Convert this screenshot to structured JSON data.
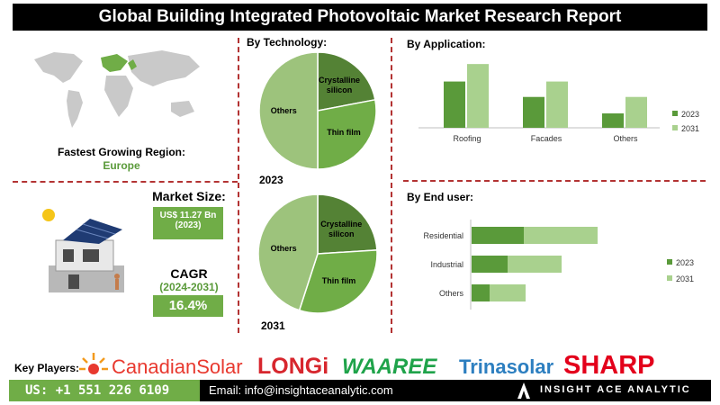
{
  "title": "Global Building Integrated Photovoltaic Market Research Report",
  "region": {
    "label": "Fastest Growing Region:",
    "value": "Europe"
  },
  "market_size": {
    "label": "Market Size:",
    "value": "US$ 11.27 Bn",
    "year": "(2023)"
  },
  "cagr": {
    "label": "CAGR",
    "period": "(2024-2031)",
    "value": "16.4%"
  },
  "sections": {
    "technology": "By Technology:",
    "application": "By Application:",
    "end_user": "By End user:"
  },
  "colors": {
    "dark_green": "#5a9a3a",
    "light_green": "#a9d18e",
    "pie_dark": "#548235",
    "pie_mid": "#70ad47",
    "pie_light": "#9dc37c",
    "footer_green": "#70ad47"
  },
  "key_players": {
    "label": "Key Players:",
    "brands": [
      "CanadianSolar",
      "LONGi",
      "WAAREE",
      "Trinasolar",
      "SHARP"
    ]
  },
  "footer": {
    "phone": "US: +1 551 226 6109",
    "email": "Email: info@insightaceanalytic.com",
    "brand": "INSIGHT ACE ANALYTIC"
  },
  "chart_data": [
    {
      "type": "pie",
      "title": "2023",
      "categories": [
        "Crystalline silicon",
        "Thin film",
        "Others"
      ],
      "values": [
        22,
        28,
        50
      ]
    },
    {
      "type": "pie",
      "title": "2031",
      "categories": [
        "Crystalline silicon",
        "Thin film",
        "Others"
      ],
      "values": [
        24,
        31,
        45
      ]
    },
    {
      "type": "bar",
      "title": "By Application:",
      "categories": [
        "Roofing",
        "Facades",
        "Others"
      ],
      "series": [
        {
          "name": "2023",
          "values": [
            45,
            30,
            14
          ]
        },
        {
          "name": "2031",
          "values": [
            62,
            45,
            30
          ]
        }
      ],
      "ylim": [
        0,
        70
      ],
      "legend": "right"
    },
    {
      "type": "bar",
      "orientation": "horizontal",
      "title": "By End user:",
      "categories": [
        "Residential",
        "Industrial",
        "Others"
      ],
      "series": [
        {
          "name": "2023",
          "values": [
            29,
            20,
            10
          ]
        },
        {
          "name": "2031",
          "values": [
            70,
            50,
            30
          ]
        }
      ],
      "legend": "right"
    }
  ]
}
